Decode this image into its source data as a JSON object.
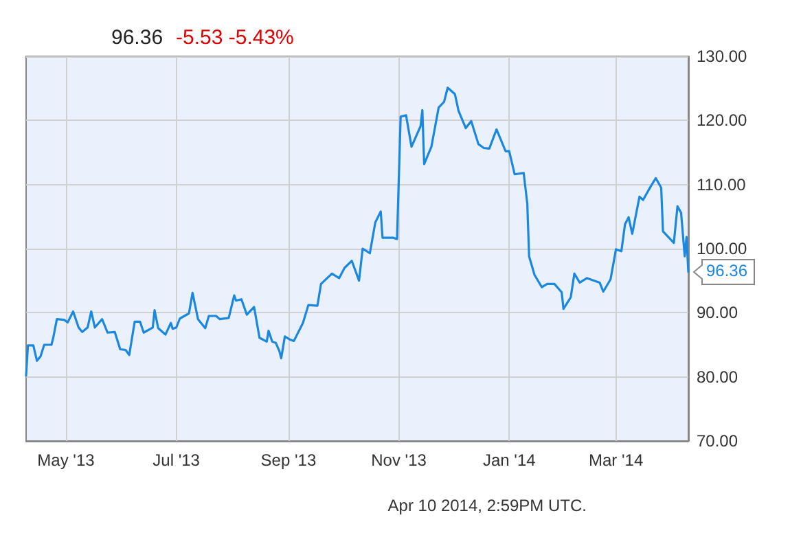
{
  "chart_data": {
    "type": "line",
    "title": "96.36",
    "subtitle": "-5.53 -5.43%",
    "annotations": [
      "Apr 10 2014, 2:59PM UTC.",
      {
        "text": "96.36",
        "x": "2014-04-10",
        "y": 96.36
      }
    ],
    "x": [
      "2013-04-09",
      "2013-04-10",
      "2013-04-13",
      "2013-04-15",
      "2013-04-17",
      "2013-04-19",
      "2013-04-23",
      "2013-04-24",
      "2013-04-26",
      "2013-04-30",
      "2013-05-02",
      "2013-05-05",
      "2013-05-08",
      "2013-05-10",
      "2013-05-13",
      "2013-05-15",
      "2013-05-17",
      "2013-05-21",
      "2013-05-24",
      "2013-05-28",
      "2013-05-31",
      "2013-06-03",
      "2013-06-05",
      "2013-06-08",
      "2013-06-11",
      "2013-06-13",
      "2013-06-18",
      "2013-06-19",
      "2013-06-21",
      "2013-06-25",
      "2013-06-28",
      "2013-06-29",
      "2013-07-01",
      "2013-07-03",
      "2013-07-08",
      "2013-07-10",
      "2013-07-13",
      "2013-07-17",
      "2013-07-19",
      "2013-07-23",
      "2013-07-25",
      "2013-07-30",
      "2013-08-02",
      "2013-08-03",
      "2013-08-06",
      "2013-08-09",
      "2013-08-13",
      "2013-08-16",
      "2013-08-20",
      "2013-08-21",
      "2013-08-23",
      "2013-08-25",
      "2013-08-27",
      "2013-08-28",
      "2013-08-30",
      "2013-09-02",
      "2013-09-04",
      "2013-09-09",
      "2013-09-12",
      "2013-09-17",
      "2013-09-19",
      "2013-09-25",
      "2013-09-29",
      "2013-10-02",
      "2013-10-06",
      "2013-10-10",
      "2013-10-12",
      "2013-10-16",
      "2013-10-19",
      "2013-10-22",
      "2013-10-23",
      "2013-10-29",
      "2013-10-31",
      "2013-11-02",
      "2013-11-05",
      "2013-11-08",
      "2013-11-13",
      "2013-11-14",
      "2013-11-15",
      "2013-11-19",
      "2013-11-23",
      "2013-11-26",
      "2013-11-28",
      "2013-12-02",
      "2013-12-04",
      "2013-12-08",
      "2013-12-11",
      "2013-12-15",
      "2013-12-18",
      "2013-12-21",
      "2013-12-25",
      "2013-12-30",
      "2014-01-01",
      "2014-01-04",
      "2014-01-09",
      "2014-01-11",
      "2014-01-12",
      "2014-01-15",
      "2014-01-19",
      "2014-01-22",
      "2014-01-26",
      "2014-01-30",
      "2014-01-31",
      "2014-02-04",
      "2014-02-06",
      "2014-02-09",
      "2014-02-13",
      "2014-02-20",
      "2014-02-22",
      "2014-02-26",
      "2014-03-01",
      "2014-03-04",
      "2014-03-06",
      "2014-03-08",
      "2014-03-10",
      "2014-03-14",
      "2014-03-16",
      "2014-03-20",
      "2014-03-23",
      "2014-03-26",
      "2014-03-27",
      "2014-04-02",
      "2014-04-04",
      "2014-04-06",
      "2014-04-08",
      "2014-04-09",
      "2014-04-10"
    ],
    "series": [
      {
        "color": "#1a87e0",
        "values": [
          80.2,
          84.9,
          84.9,
          82.5,
          83.2,
          85.0,
          85.0,
          86.1,
          89.0,
          88.9,
          88.5,
          90.2,
          87.7,
          87.0,
          87.7,
          90.2,
          87.7,
          89.0,
          86.9,
          87.0,
          84.3,
          84.2,
          83.4,
          88.6,
          88.6,
          86.9,
          87.7,
          90.4,
          87.6,
          86.6,
          88.4,
          87.5,
          87.7,
          89.1,
          89.9,
          93.1,
          89.0,
          87.6,
          89.5,
          89.5,
          89.0,
          89.2,
          92.7,
          91.9,
          92.1,
          89.7,
          90.9,
          86.1,
          85.5,
          87.2,
          85.5,
          85.3,
          84.0,
          82.9,
          86.3,
          85.8,
          85.6,
          88.4,
          91.2,
          91.1,
          94.5,
          96.1,
          95.4,
          97.0,
          98.1,
          95.0,
          100.0,
          99.3,
          104.1,
          105.8,
          101.7,
          101.7,
          101.5,
          120.6,
          120.8,
          115.9,
          119.1,
          121.6,
          113.2,
          115.9,
          122.0,
          122.9,
          125.1,
          124.1,
          121.5,
          118.8,
          119.9,
          116.3,
          115.7,
          115.6,
          118.6,
          115.2,
          115.2,
          111.6,
          111.8,
          107.0,
          98.8,
          95.9,
          94.0,
          94.5,
          94.5,
          93.2,
          90.6,
          92.4,
          96.1,
          94.7,
          95.4,
          94.7,
          93.3,
          95.2,
          99.9,
          99.6,
          103.8,
          104.9,
          102.3,
          108.1,
          107.6,
          109.6,
          111.0,
          109.5,
          102.7,
          100.9,
          106.6,
          105.6,
          98.8,
          101.8,
          96.36
        ]
      }
    ],
    "xlim": [
      "2013-04-09",
      "2014-04-10"
    ],
    "xticks": [
      {
        "value": "2013-05-01",
        "label": "May '13"
      },
      {
        "value": "2013-07-01",
        "label": "Jul '13"
      },
      {
        "value": "2013-09-01",
        "label": "Sep '13"
      },
      {
        "value": "2013-11-01",
        "label": "Nov '13"
      },
      {
        "value": "2014-01-01",
        "label": "Jan '14"
      },
      {
        "value": "2014-03-01",
        "label": "Mar '14"
      }
    ],
    "ylim": [
      70,
      130
    ],
    "yticks": [
      {
        "value": 70,
        "label": "70.00"
      },
      {
        "value": 80,
        "label": "80.00"
      },
      {
        "value": 90,
        "label": "90.00"
      },
      {
        "value": 100,
        "label": "100.00"
      },
      {
        "value": 110,
        "label": "110.00"
      },
      {
        "value": 120,
        "label": "120.00"
      },
      {
        "value": 130,
        "label": "130.00"
      }
    ],
    "grid": true,
    "marker": "none",
    "line_style": "solid"
  }
}
